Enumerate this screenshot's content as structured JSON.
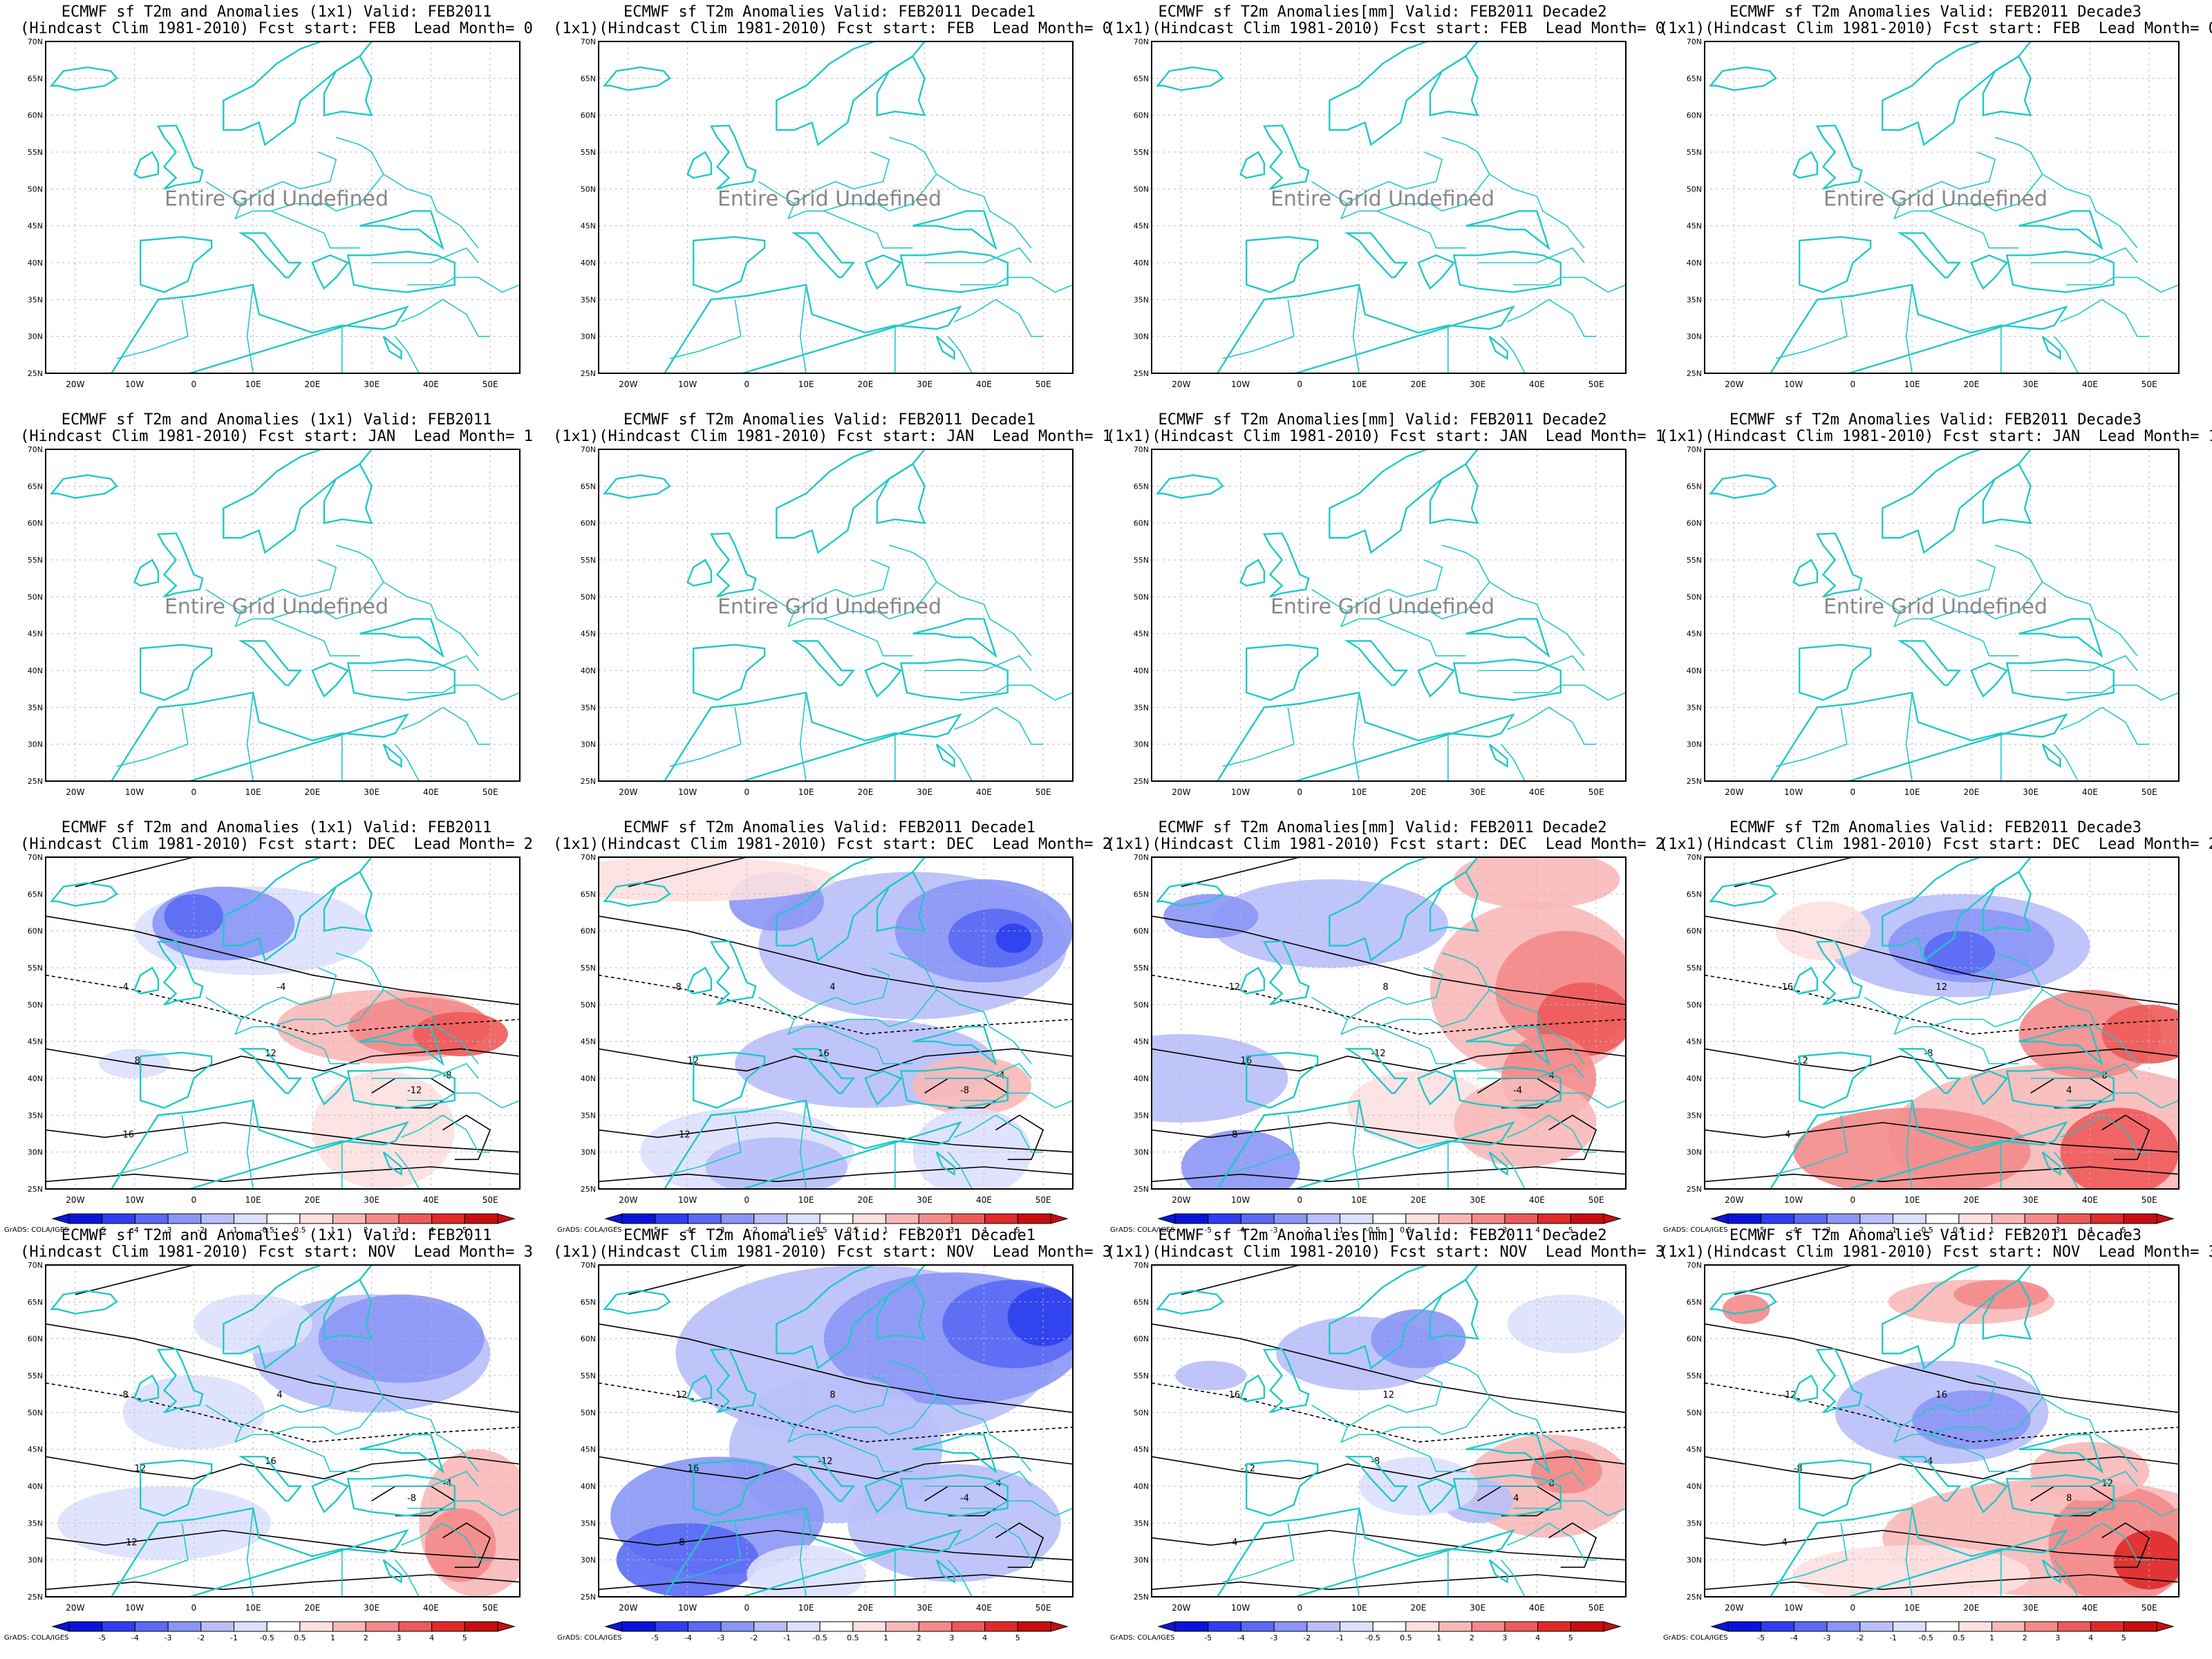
{
  "titles": {
    "col_line1": [
      "ECMWF sf T2m and Anomalies (1x1) Valid: FEB2011",
      "ECMWF sf T2m Anomalies Valid: FEB2011 Decade1",
      "ECMWF sf T2m Anomalies[mm] Valid: FEB2011 Decade2",
      "ECMWF sf T2m Anomalies Valid: FEB2011 Decade3"
    ],
    "col_prefix": [
      "(Hindcast",
      "(1x1)(Hindcast",
      "(1x1)(Hindcast",
      "(1x1)(Hindcast"
    ],
    "clim": "Clim 1981-2010) Fcst start:",
    "rows": [
      {
        "start": "FEB",
        "lead": "Lead Month= 0"
      },
      {
        "start": "JAN",
        "lead": "Lead Month= 1"
      },
      {
        "start": "DEC",
        "lead": "Lead Month= 2"
      },
      {
        "start": "NOV",
        "lead": "Lead Month= 3"
      }
    ]
  },
  "undefined_text": "Entire Grid Undefined",
  "lat_labels": [
    "70N",
    "65N",
    "60N",
    "55N",
    "50N",
    "45N",
    "40N",
    "35N",
    "30N",
    "25N"
  ],
  "lon_labels": [
    "20W",
    "10W",
    "0",
    "10E",
    "20E",
    "30E",
    "40E",
    "50E"
  ],
  "colorbar": {
    "labels": [
      "-5",
      "-4",
      "-3",
      "-2",
      "-1",
      "-0.5",
      "0.5",
      "1",
      "2",
      "3",
      "4",
      "5"
    ],
    "colors": [
      "#0a14d8",
      "#2e3ef0",
      "#5a6af4",
      "#8a96f6",
      "#b8bffa",
      "#dde0fd",
      "#ffffff",
      "#fde0e0",
      "#f9b8b8",
      "#f48a8a",
      "#ee5a5a",
      "#e02a2a",
      "#c80e0e"
    ]
  },
  "contour_labels": [
    "-12",
    "-8",
    "-4",
    "4",
    "8",
    "12",
    "16"
  ],
  "credit": "GrADS: COLA/IGES",
  "colors": {
    "coast": "#20c8c8",
    "contour": "#000000"
  }
}
